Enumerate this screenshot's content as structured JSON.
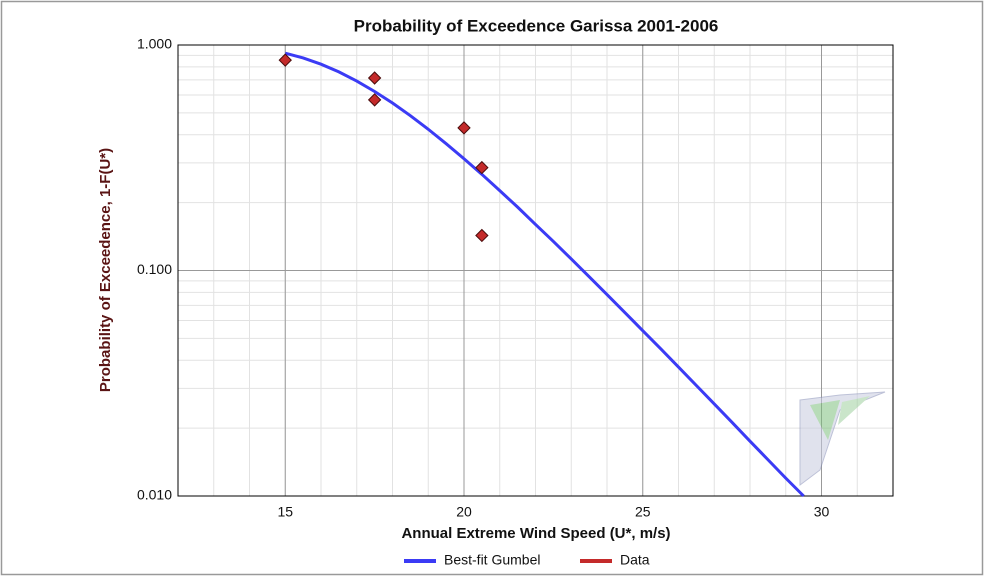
{
  "chart_data": {
    "type": "line",
    "title": "Probability of Exceedence Garissa 2001-2006",
    "x_label": "Annual Extreme Wind Speed (U*, m/s)",
    "y_label": "Probability of Exceedence, 1-F(U*)",
    "xlim": [
      12,
      32
    ],
    "xticks": [
      15,
      20,
      25,
      30
    ],
    "ylim": [
      0.01,
      1
    ],
    "yticks": [
      {
        "value": 0.01,
        "label": "0.010"
      },
      {
        "value": 0.1,
        "label": "0.100"
      },
      {
        "value": 1,
        "label": "1.000"
      }
    ],
    "y_scale": "log",
    "grid": true,
    "minor_grid": true,
    "legend": "bottom",
    "series": [
      {
        "name": "Best-fit Gumbel",
        "color": "#3b3bf5",
        "style": "line",
        "x": [
          15,
          15.5,
          16,
          16.5,
          17,
          17.5,
          18,
          18.5,
          19,
          19.5,
          20,
          20.5,
          21,
          21.5,
          22,
          22.5,
          23,
          23.5,
          24,
          24.5,
          25,
          25.5,
          26,
          26.5,
          27,
          27.5,
          28,
          28.5,
          29,
          29.5
        ],
        "values": [
          0.92,
          0.876,
          0.822,
          0.76,
          0.692,
          0.622,
          0.553,
          0.486,
          0.423,
          0.365,
          0.313,
          0.267,
          0.226,
          0.191,
          0.16,
          0.1345,
          0.1125,
          0.0939,
          0.0782,
          0.0651,
          0.0541,
          0.045,
          0.0373,
          0.0309,
          0.0256,
          0.0212,
          0.0175,
          0.0145,
          0.012,
          0.01
        ]
      },
      {
        "name": "Data",
        "color": "#c42a2a",
        "style": "markers",
        "x": [
          15,
          17.5,
          17.5,
          20,
          20.5,
          20.5
        ],
        "values": [
          0.857,
          0.714,
          0.571,
          0.429,
          0.286,
          0.143
        ]
      }
    ]
  }
}
